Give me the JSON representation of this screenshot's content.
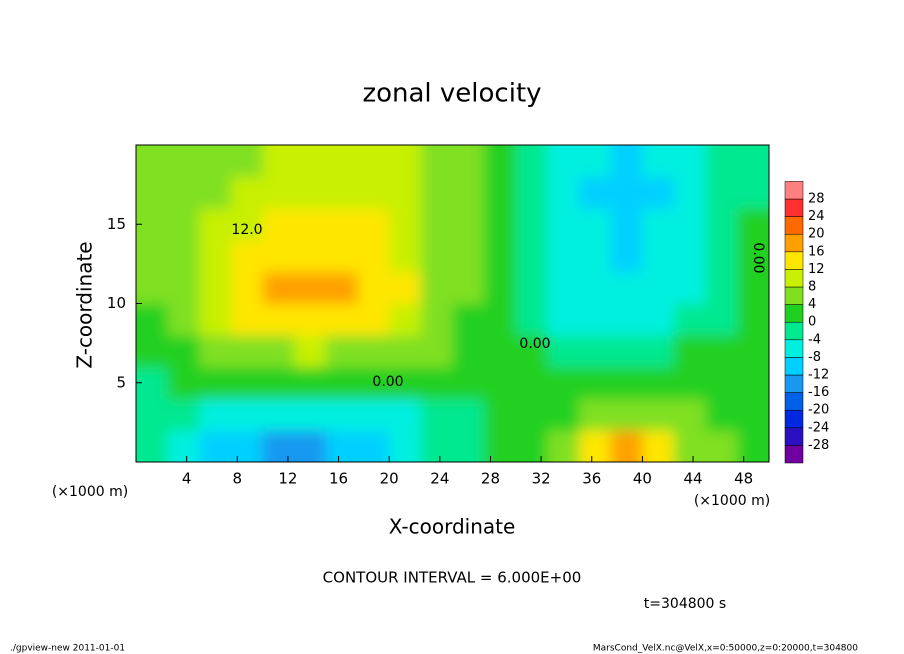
{
  "chart_data": {
    "type": "contour",
    "title": "zonal velocity",
    "x_label": "X-coordinate",
    "y_label": "Z-coordinate",
    "x_unit": "(×1000 m)",
    "y_unit": "(×1000 m)",
    "contour_interval": "CONTOUR INTERVAL = 6.000E+00",
    "time": "t=304800 s",
    "footer_left": "./gpview-new  2011-01-01",
    "footer_right": "MarsCond_VelX.nc@VelX,x=0:50000,z=0:20000,t=304800",
    "contour_labels": [
      "12.0",
      "0.00",
      "0.00",
      "0.00"
    ],
    "xlim": [
      0,
      50
    ],
    "ylim": [
      0,
      20
    ],
    "xticks": [
      4,
      8,
      12,
      16,
      20,
      24,
      28,
      32,
      36,
      40,
      44,
      48
    ],
    "yticks": [
      5,
      10,
      15
    ],
    "x": [
      1.25,
      3.75,
      6.25,
      8.75,
      11.25,
      13.75,
      16.25,
      18.75,
      21.25,
      23.75,
      26.25,
      28.75,
      31.25,
      33.75,
      36.25,
      38.75,
      41.25,
      43.75,
      46.25,
      48.75
    ],
    "y": [
      1,
      3,
      5,
      7,
      9,
      11,
      13,
      15,
      17,
      19
    ],
    "z": [
      [
        -2,
        -5,
        -9,
        -11,
        -13,
        -14,
        -12,
        -10,
        -6,
        -3,
        -1,
        0,
        3,
        6,
        12,
        17,
        14,
        7,
        4,
        3
      ],
      [
        -2,
        -4,
        -6,
        -7,
        -8,
        -8,
        -7,
        -6,
        -5,
        -3,
        -1,
        0,
        2,
        3,
        4,
        5,
        5,
        4,
        3,
        3
      ],
      [
        -1,
        0,
        1,
        2,
        1,
        1,
        1,
        1,
        1,
        0,
        0,
        1,
        1,
        2,
        2,
        1,
        2,
        3,
        3,
        3
      ],
      [
        2,
        3,
        5,
        6,
        7,
        8,
        7,
        6,
        5,
        4,
        2,
        1,
        0,
        -2,
        -3,
        -3,
        -2,
        0,
        1,
        2
      ],
      [
        3,
        5,
        10,
        13,
        14,
        15,
        14,
        13,
        9,
        6,
        3,
        1,
        -3,
        -5,
        -7,
        -8,
        -6,
        -3,
        -1,
        1
      ],
      [
        4,
        6,
        10,
        13,
        16,
        18,
        16,
        14,
        12,
        7,
        4,
        0,
        -3,
        -6,
        -8,
        -8,
        -7,
        -5,
        -2,
        1
      ],
      [
        4,
        6,
        9,
        12,
        14,
        15,
        14,
        13,
        11,
        7,
        4,
        0,
        -3,
        -6,
        -8,
        -9,
        -8,
        -6,
        -3,
        0
      ],
      [
        4,
        6,
        8,
        10,
        12,
        12,
        12,
        12,
        10,
        7,
        4,
        0,
        -3,
        -6,
        -8,
        -9,
        -8,
        -6,
        -3,
        0
      ],
      [
        4,
        6,
        7,
        9,
        10,
        10,
        10,
        10,
        9,
        7,
        4,
        1,
        -3,
        -6,
        -9,
        -12,
        -9,
        -6,
        -3,
        -1
      ],
      [
        4,
        5,
        6,
        7,
        8,
        9,
        9,
        9,
        8,
        7,
        4,
        1,
        -2,
        -5,
        -8,
        -9,
        -8,
        -5,
        -3,
        -2
      ]
    ],
    "levels": [
      -28,
      -24,
      -20,
      -16,
      -12,
      -8,
      -4,
      0,
      4,
      8,
      12,
      16,
      20,
      24,
      28
    ],
    "colors": [
      "#7000a0",
      "#2a10c0",
      "#0028e0",
      "#0060e8",
      "#1898f0",
      "#00d0ff",
      "#00f0e0",
      "#00e890",
      "#20d020",
      "#80e020",
      "#c8f000",
      "#ffe600",
      "#ffa000",
      "#ff6a00",
      "#ff3030",
      "#ff8080"
    ]
  }
}
